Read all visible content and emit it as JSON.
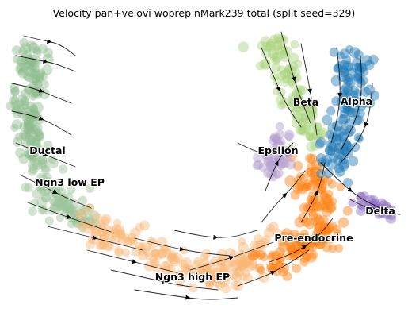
{
  "chart_data": {
    "type": "scatter",
    "title": "Velocity pan+velovi woprep nMark239 total (split seed=329)",
    "xlabel": "",
    "ylabel": "",
    "grid": false,
    "axes_visible": false,
    "legend": "on data",
    "overlay": "velocity streamlines with arrowheads",
    "clusters": [
      {
        "name": "Ductal",
        "color": "#8fbc8f"
      },
      {
        "name": "Ngn3 low EP",
        "color": "#9cc49a"
      },
      {
        "name": "Ngn3 high EP",
        "color": "#f8b878"
      },
      {
        "name": "Pre-endocrine",
        "color": "#ff7f0e"
      },
      {
        "name": "Epsilon",
        "color": "#b39ecf"
      },
      {
        "name": "Beta",
        "color": "#a8d37c"
      },
      {
        "name": "Alpha",
        "color": "#1f77b4"
      },
      {
        "name": "Delta",
        "color": "#8a6bbf"
      }
    ]
  }
}
